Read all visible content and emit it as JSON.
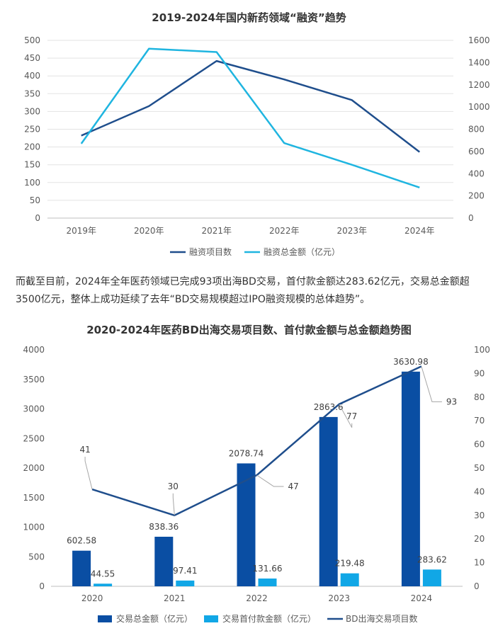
{
  "text": {
    "paragraph": "而截至目前，2024年全年医药领域已完成93项出海BD交易，首付款金额达283.62亿元，交易总金额超3500亿元，整体上成功延续了去年“BD交易规模超过IPO融资规模的总体趋势”。"
  },
  "colors": {
    "dark_blue": "#1f4e8c",
    "light_blue": "#1fb5e0",
    "bar_dark": "#0a4ea3",
    "bar_light": "#11a7e6"
  },
  "chart_data": [
    {
      "type": "line",
      "title": "2019-2024年国内新药领域“融资”趋势",
      "categories": [
        "2019年",
        "2020年",
        "2021年",
        "2022年",
        "2023年",
        "2024年"
      ],
      "series": [
        {
          "name": "融资项目数",
          "axis": "left",
          "values": [
            232,
            315,
            442,
            390,
            332,
            186
          ]
        },
        {
          "name": "融资总金额（亿元）",
          "axis": "right",
          "values": [
            670,
            1525,
            1495,
            675,
            480,
            275
          ]
        }
      ],
      "y_left": {
        "min": 0,
        "max": 500,
        "ticks": [
          "0",
          "50",
          "100",
          "150",
          "200",
          "250",
          "300",
          "350",
          "400",
          "450",
          "500"
        ]
      },
      "y_right": {
        "min": 0,
        "max": 1600,
        "ticks": [
          "0",
          "200",
          "400",
          "600",
          "800",
          "1000",
          "1200",
          "1400",
          "1600"
        ]
      },
      "grid": true,
      "legend": "bottom"
    },
    {
      "type": "bar",
      "title": "2020-2024年医药BD出海交易项目数、首付款金额与总金额趋势图",
      "categories": [
        "2020",
        "2021",
        "2022",
        "2023",
        "2024"
      ],
      "series": [
        {
          "name": "交易总金额（亿元）",
          "kind": "bar",
          "axis": "left",
          "values": [
            602.58,
            838.36,
            2078.74,
            2863.6,
            3630.98
          ],
          "labels": [
            "602.58",
            "838.36",
            "2078.74",
            "2863.6",
            "3630.98"
          ]
        },
        {
          "name": "交易首付款金额（亿元）",
          "kind": "bar",
          "axis": "left",
          "values": [
            44.55,
            97.41,
            131.66,
            219.48,
            283.62
          ],
          "labels": [
            "44.55",
            "97.41",
            "131.66",
            "219.48",
            "283.62"
          ]
        },
        {
          "name": "BD出海交易项目数",
          "kind": "line",
          "axis": "right",
          "values": [
            41,
            30,
            47,
            77,
            93
          ],
          "labels": [
            "41",
            "30",
            "47",
            "77",
            "93"
          ]
        }
      ],
      "y_left": {
        "min": 0,
        "max": 4000,
        "ticks": [
          "0",
          "500",
          "1000",
          "1500",
          "2000",
          "2500",
          "3000",
          "3500",
          "4000"
        ]
      },
      "y_right": {
        "min": 0,
        "max": 100,
        "ticks": [
          "0",
          "10",
          "20",
          "30",
          "40",
          "50",
          "60",
          "70",
          "80",
          "90",
          "100"
        ]
      },
      "grid": false,
      "legend": "bottom"
    }
  ]
}
